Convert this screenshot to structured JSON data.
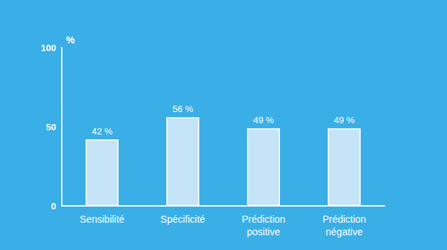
{
  "chart_data": {
    "type": "bar",
    "ylabel": "%",
    "categories": [
      "Sensibilité",
      "Spécificité",
      "Prédiction positive",
      "Prédiction négative"
    ],
    "values": [
      42,
      56,
      49,
      49
    ],
    "value_labels": [
      "42 %",
      "56 %",
      "49 %",
      "49 %"
    ],
    "color": "#c6e4f7",
    "ylim": [
      0,
      100
    ],
    "yticks": [
      0,
      50,
      100
    ],
    "grid": false,
    "data_labels": true
  }
}
